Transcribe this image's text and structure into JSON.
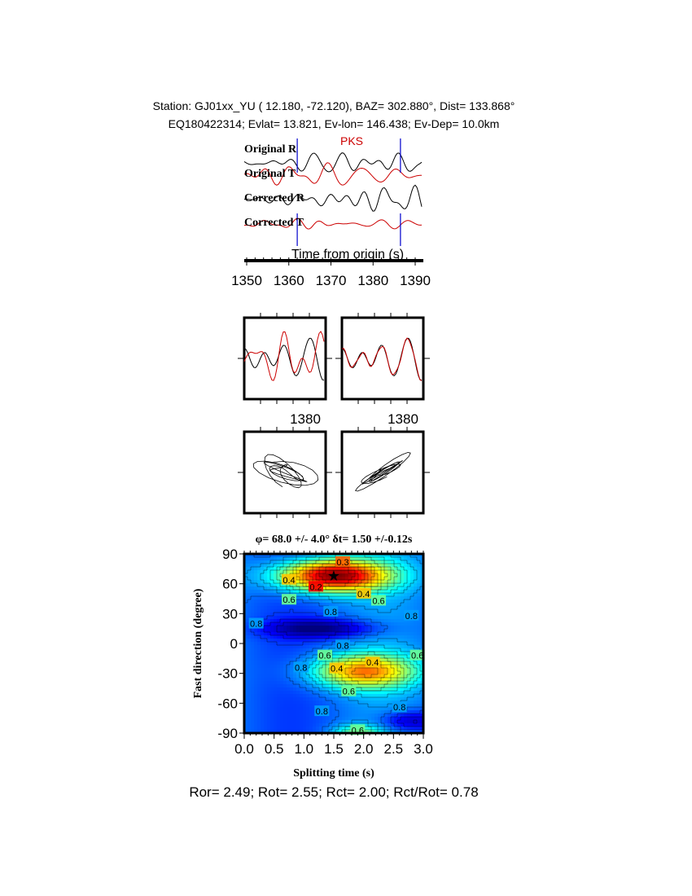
{
  "header": {
    "line1": "Station: GJ01xx_YU (  12.180,  -72.120), BAZ=  302.880°, Dist=  133.868°",
    "line2": "EQ180422314; Evlat=  13.821, Ev-lon= 146.438; Ev-Dep= 10.0km"
  },
  "chart_data": [
    {
      "type": "line",
      "phase_label": "PKS",
      "trace_labels": [
        "Original R",
        "Original T",
        "Corrected R",
        "Corrected T"
      ],
      "xlabel": "Time from origin (s)",
      "xlim": [
        1349,
        1392
      ],
      "x_ticks": [
        "1350",
        "1360",
        "1370",
        "1380",
        "1390"
      ],
      "window_markers": [
        1362,
        1386.5
      ],
      "colors": {
        "radial": "#000000",
        "transverse": "#cc0000",
        "window": "#0000cc"
      }
    },
    {
      "type": "line",
      "panels": [
        "original-components-overlay",
        "corrected-components-overlay"
      ],
      "x_tick_label": "1380",
      "colors": {
        "fast": "#000000",
        "slow": "#cc0000"
      }
    },
    {
      "type": "scatter",
      "panels": [
        "original-particle-motion",
        "corrected-particle-motion"
      ]
    },
    {
      "type": "heatmap",
      "title": "φ= 68.0 +/- 4.0° δt= 1.50 +/-0.12s",
      "xlabel": "Splitting time (s)",
      "ylabel": "Fast direction (degree)",
      "xlim": [
        0,
        3
      ],
      "ylim": [
        -90,
        90
      ],
      "x_ticks": [
        "0.0",
        "0.5",
        "1.0",
        "1.5",
        "2.0",
        "2.5",
        "3.0"
      ],
      "y_ticks": [
        "90",
        "60",
        "30",
        "0",
        "-30",
        "-60",
        "-90"
      ],
      "best_fit": {
        "dt": 1.5,
        "phi": 68
      },
      "contour_labels": [
        {
          "t": 1.65,
          "phi": 82,
          "text": "0.3"
        },
        {
          "t": 0.75,
          "phi": 64,
          "text": "0.4"
        },
        {
          "t": 1.2,
          "phi": 57,
          "text": "0.2"
        },
        {
          "t": 2.0,
          "phi": 50,
          "text": "0.4"
        },
        {
          "t": 0.75,
          "phi": 44,
          "text": "0.6"
        },
        {
          "t": 2.25,
          "phi": 43,
          "text": "0.6"
        },
        {
          "t": 1.45,
          "phi": 32,
          "text": "0.8"
        },
        {
          "t": 2.8,
          "phi": 28,
          "text": "0.8"
        },
        {
          "t": 0.2,
          "phi": 20,
          "text": "0.8"
        },
        {
          "t": 1.65,
          "phi": -2,
          "text": "0.8"
        },
        {
          "t": 1.35,
          "phi": -12,
          "text": "0.6"
        },
        {
          "t": 1.55,
          "phi": -25,
          "text": "0.4"
        },
        {
          "t": 2.15,
          "phi": -19,
          "text": "0.4"
        },
        {
          "t": 2.9,
          "phi": -12,
          "text": "0.6"
        },
        {
          "t": 0.95,
          "phi": -24,
          "text": "0.8"
        },
        {
          "t": 1.75,
          "phi": -48,
          "text": "0.6"
        },
        {
          "t": 1.3,
          "phi": -68,
          "text": "0.8"
        },
        {
          "t": 2.6,
          "phi": -64,
          "text": "0.8"
        },
        {
          "t": 1.9,
          "phi": -87,
          "text": "0.6"
        }
      ]
    }
  ],
  "footer": {
    "ratios": "Ror= 2.49; Rot= 2.55; Rct= 2.00; Rct/Rot= 0.78"
  }
}
